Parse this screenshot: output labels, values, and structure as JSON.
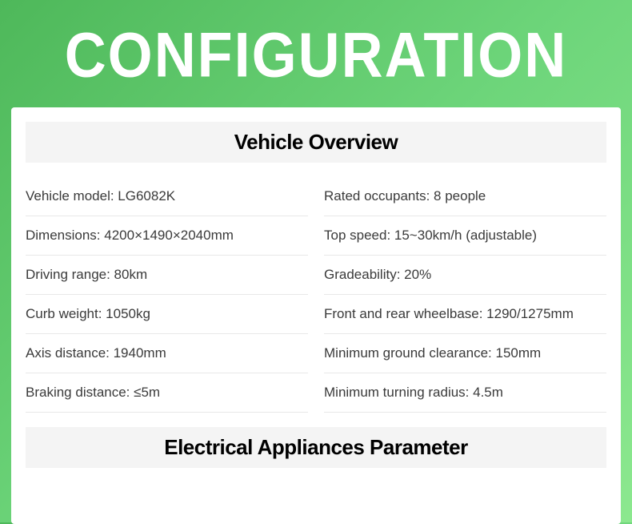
{
  "page_title": "CONFIGURATION",
  "colors": {
    "bg_gradient_start": "#4eb85a",
    "bg_gradient_mid": "#6dd57a",
    "bg_gradient_end": "#8ce88f",
    "card_bg": "#ffffff",
    "section_header_bg": "#f4f4f4",
    "title_color": "#ffffff",
    "text_color": "#3a3a3a",
    "divider_color": "#e8e8e8"
  },
  "sections": [
    {
      "title": "Vehicle Overview",
      "rows": [
        {
          "left": "Vehicle model: LG6082K",
          "right": "Rated occupants: 8 people"
        },
        {
          "left": "Dimensions: 4200×1490×2040mm",
          "right": "Top speed: 15~30km/h (adjustable)"
        },
        {
          "left": "Driving range: 80km",
          "right": "Gradeability: 20%"
        },
        {
          "left": "Curb weight: 1050kg",
          "right": "Front and rear wheelbase: 1290/1275mm"
        },
        {
          "left": "Axis distance: 1940mm",
          "right": "Minimum ground clearance: 150mm"
        },
        {
          "left": "Braking distance: ≤5m",
          "right": "Minimum turning radius: 4.5m"
        }
      ]
    },
    {
      "title": "Electrical Appliances Parameter",
      "rows": []
    }
  ]
}
